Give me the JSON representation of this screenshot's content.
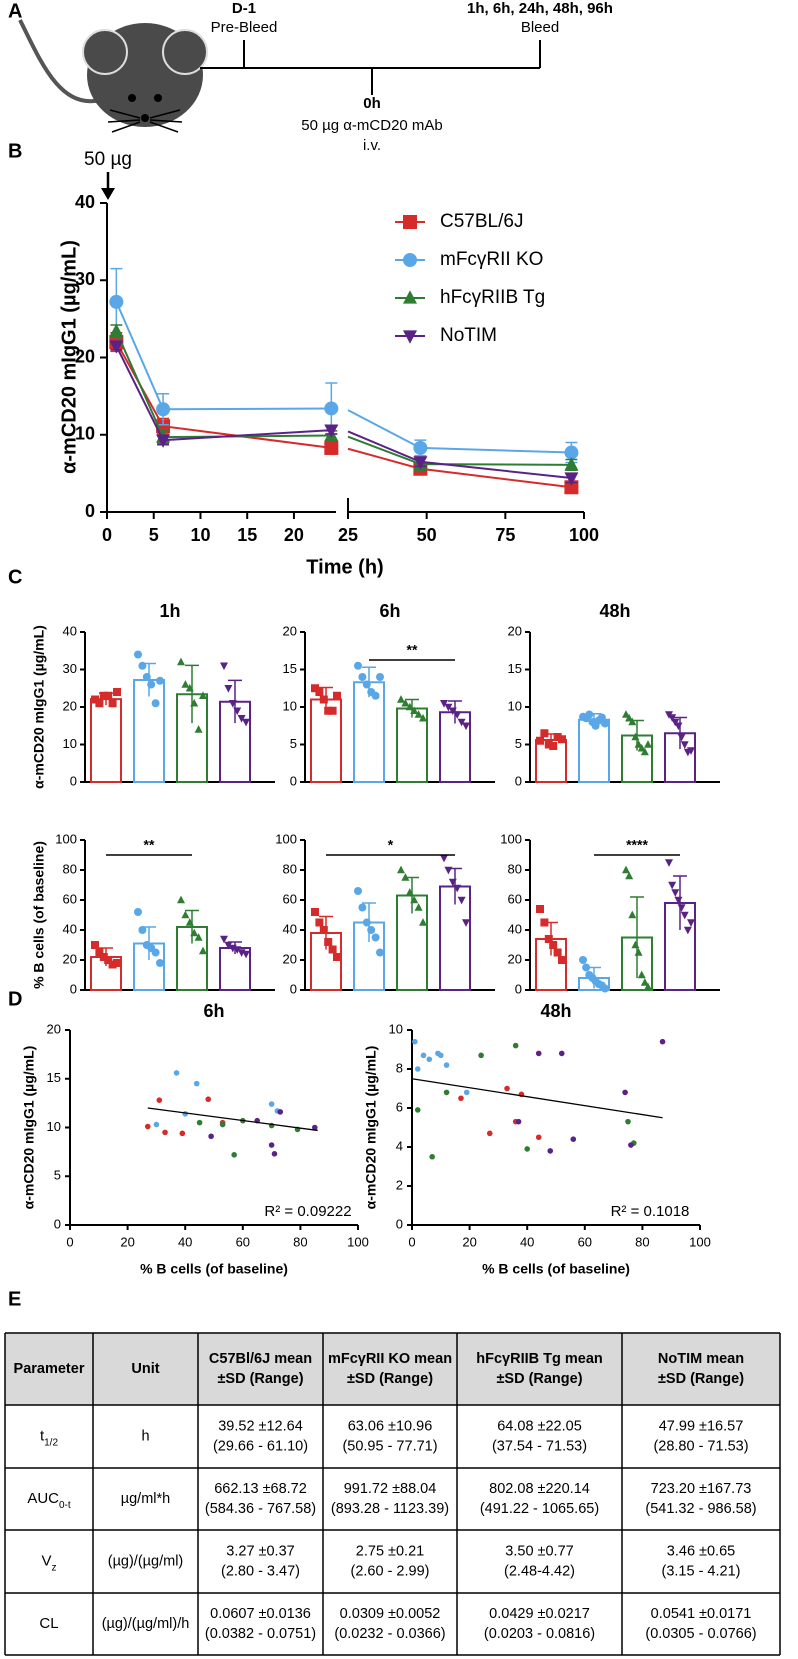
{
  "panel_labels": [
    "A",
    "B",
    "C",
    "D",
    "E"
  ],
  "panel_a": {
    "pre": [
      "D-1",
      "Pre-Bleed"
    ],
    "bleed": [
      "1h, 6h, 24h, 48h, 96h",
      "Bleed"
    ],
    "dose": [
      "0h",
      "50 µg α-mCD20 mAb",
      "i.v."
    ]
  },
  "chart_data": [
    {
      "type": "line",
      "annotation": "50 µg",
      "ylabel": "α-mCD20 mIgG1 (µg/mL)",
      "xlabel": "Time (h)",
      "x": [
        1,
        6,
        24,
        48,
        96
      ],
      "x_segments": [
        {
          "xlim": [
            0,
            24.5
          ],
          "xticks": [
            0,
            5,
            10,
            15,
            20
          ]
        },
        {
          "xlim": [
            25,
            100
          ],
          "xticks": [
            25,
            50,
            75,
            100
          ]
        }
      ],
      "ylim": [
        0,
        40
      ],
      "yticks": [
        0,
        10,
        20,
        30,
        40
      ],
      "series": [
        {
          "name": "C57BL/6J",
          "color": "#d62b2b",
          "marker": "square",
          "values": [
            22.0,
            11.1,
            8.3,
            5.6,
            3.2
          ],
          "errors": [
            1.2,
            1.0,
            0.8,
            0.5,
            0.4
          ]
        },
        {
          "name": "mFcγRII KO",
          "color": "#5aa7e8",
          "marker": "circle",
          "values": [
            27.2,
            13.3,
            13.4,
            8.3,
            7.7
          ],
          "errors": [
            4.3,
            2.0,
            3.3,
            1.0,
            1.3
          ]
        },
        {
          "name": "hFcγRIIB Tg",
          "color": "#2e7d32",
          "marker": "triangle-up",
          "values": [
            23.4,
            9.7,
            9.9,
            6.2,
            6.1
          ],
          "errors": [
            0.8,
            0.8,
            0.6,
            0.8,
            0.7
          ]
        },
        {
          "name": "NoTIM",
          "color": "#5b2286",
          "marker": "triangle-down",
          "values": [
            21.5,
            9.3,
            10.6,
            6.5,
            4.4
          ],
          "errors": [
            0.5,
            0.6,
            0.5,
            0.6,
            0.6
          ]
        }
      ]
    },
    {
      "type": "bar",
      "title": "1h",
      "ylabel": "α-mCD20 mIgG1 (µg/mL)",
      "ylim": [
        0,
        40
      ],
      "yticks": [
        0,
        10,
        20,
        30,
        40
      ],
      "colors": [
        "#d62b2b",
        "#5aa7e8",
        "#2e7d32",
        "#5b2286"
      ],
      "markers": [
        "square",
        "circle",
        "triangle-up",
        "triangle-down"
      ],
      "values": [
        22.1,
        27.2,
        23.4,
        21.4
      ],
      "errors": [
        1.6,
        4.4,
        7.7,
        5.7
      ],
      "points": [
        [
          22,
          21,
          23,
          23,
          21,
          24
        ],
        [
          34,
          31,
          28,
          26,
          21,
          27
        ],
        [
          32,
          26,
          25,
          21,
          14,
          23
        ],
        [
          31,
          25,
          21,
          19,
          17,
          16
        ]
      ]
    },
    {
      "type": "bar",
      "title": "6h",
      "ylim": [
        0,
        20
      ],
      "yticks": [
        0,
        5,
        10,
        15,
        20
      ],
      "significance": "**",
      "colors": [
        "#d62b2b",
        "#5aa7e8",
        "#2e7d32",
        "#5b2286"
      ],
      "markers": [
        "square",
        "circle",
        "triangle-up",
        "triangle-down"
      ],
      "values": [
        11.0,
        13.3,
        9.8,
        9.3
      ],
      "errors": [
        1.6,
        2.0,
        1.2,
        1.5
      ],
      "points": [
        [
          12.5,
          12,
          11,
          9.5,
          9.5,
          11.5
        ],
        [
          15.5,
          14,
          13,
          12,
          11.5,
          14
        ],
        [
          11,
          10.5,
          10,
          9.5,
          9,
          8.5
        ],
        [
          10.5,
          10,
          9.5,
          9,
          8,
          7.5
        ]
      ]
    },
    {
      "type": "bar",
      "title": "48h",
      "ylim": [
        0,
        20
      ],
      "yticks": [
        0,
        5,
        10,
        15,
        20
      ],
      "colors": [
        "#d62b2b",
        "#5aa7e8",
        "#2e7d32",
        "#5b2286"
      ],
      "markers": [
        "square",
        "circle",
        "triangle-up",
        "triangle-down"
      ],
      "values": [
        5.6,
        8.3,
        6.2,
        6.5
      ],
      "errors": [
        0.8,
        0.8,
        2.0,
        2.1
      ],
      "points": [
        [
          5.5,
          6.5,
          5,
          4.8,
          6,
          5.7
        ],
        [
          8.7,
          8.5,
          9,
          8,
          7.5,
          8.2,
          8.6,
          7.8
        ],
        [
          9,
          8.5,
          8,
          6,
          5,
          4.5,
          4,
          5
        ],
        [
          9,
          8.6,
          8,
          7.5,
          6,
          5,
          4,
          4.2
        ]
      ]
    },
    {
      "type": "bar",
      "ylabel": "% B cells (of baseline)",
      "ylim": [
        0,
        100
      ],
      "yticks": [
        0,
        20,
        40,
        60,
        80,
        100
      ],
      "significance": "**",
      "colors": [
        "#d62b2b",
        "#5aa7e8",
        "#2e7d32",
        "#5b2286"
      ],
      "markers": [
        "square",
        "circle",
        "triangle-up",
        "triangle-down"
      ],
      "values": [
        22,
        31,
        42,
        28
      ],
      "errors": [
        6,
        11,
        11,
        4
      ],
      "points": [
        [
          30,
          25,
          22,
          20,
          17,
          18
        ],
        [
          52,
          40,
          30,
          28,
          25,
          18
        ],
        [
          60,
          50,
          45,
          38,
          35,
          26
        ],
        [
          34,
          30,
          28,
          27,
          25,
          24
        ]
      ]
    },
    {
      "type": "bar",
      "ylim": [
        0,
        100
      ],
      "yticks": [
        0,
        20,
        40,
        60,
        80,
        100
      ],
      "significance": "*",
      "colors": [
        "#d62b2b",
        "#5aa7e8",
        "#2e7d32",
        "#5b2286"
      ],
      "markers": [
        "square",
        "circle",
        "triangle-up",
        "triangle-down"
      ],
      "values": [
        38,
        45,
        63,
        69
      ],
      "errors": [
        11,
        13,
        12,
        12
      ],
      "points": [
        [
          52,
          45,
          40,
          32,
          27,
          22
        ],
        [
          66,
          55,
          45,
          40,
          35,
          25
        ],
        [
          80,
          75,
          65,
          60,
          55,
          45
        ],
        [
          88,
          80,
          72,
          68,
          60,
          45
        ]
      ]
    },
    {
      "type": "bar",
      "ylim": [
        0,
        100
      ],
      "yticks": [
        0,
        20,
        40,
        60,
        80,
        100
      ],
      "significance": "****",
      "colors": [
        "#d62b2b",
        "#5aa7e8",
        "#2e7d32",
        "#5b2286"
      ],
      "markers": [
        "square",
        "circle",
        "triangle-up",
        "triangle-down"
      ],
      "values": [
        34,
        8,
        35,
        58
      ],
      "errors": [
        11,
        7,
        27,
        18
      ],
      "points": [
        [
          54,
          45,
          34,
          30,
          25,
          20
        ],
        [
          20,
          15,
          10,
          8,
          6,
          4,
          3,
          1
        ],
        [
          80,
          76,
          50,
          30,
          25,
          10,
          5,
          2
        ],
        [
          85,
          70,
          65,
          60,
          55,
          50,
          40,
          45
        ]
      ]
    },
    {
      "type": "scatter",
      "title": "6h",
      "xlabel": "% B cells (of baseline)",
      "ylabel": "α-mCD20 mIgG1 (µg/mL)",
      "xlim": [
        0,
        100
      ],
      "xticks": [
        0,
        20,
        40,
        60,
        80,
        100
      ],
      "ylim": [
        0,
        20
      ],
      "yticks": [
        0,
        5,
        10,
        15,
        20
      ],
      "series": [
        {
          "color": "#d62b2b",
          "x": [
            27,
            31,
            33,
            39,
            48,
            53
          ],
          "y": [
            10.1,
            12.8,
            9.5,
            9.4,
            12.9,
            10.5
          ]
        },
        {
          "color": "#5aa7e8",
          "x": [
            30,
            37,
            40,
            44,
            70,
            72
          ],
          "y": [
            10.3,
            15.6,
            11.4,
            14.5,
            12.4,
            11.7
          ]
        },
        {
          "color": "#2e7d32",
          "x": [
            45,
            53,
            57,
            60,
            70,
            79
          ],
          "y": [
            10.5,
            10.3,
            7.2,
            10.7,
            10.2,
            9.8
          ]
        },
        {
          "color": "#5b2286",
          "x": [
            49,
            65,
            70,
            71,
            73,
            85
          ],
          "y": [
            9.1,
            10.7,
            8.2,
            7.3,
            11.6,
            10.0
          ]
        }
      ],
      "fit": {
        "x": [
          27,
          86
        ],
        "y": [
          12.0,
          9.7
        ]
      },
      "annotation": "R² = 0.09222"
    },
    {
      "type": "scatter",
      "title": "48h",
      "xlabel": "% B cells (of baseline)",
      "ylabel": "α-mCD20 mIgG1 (µg/mL)",
      "xlim": [
        0,
        100
      ],
      "xticks": [
        0,
        20,
        40,
        60,
        80,
        100
      ],
      "ylim": [
        0,
        10
      ],
      "yticks": [
        0,
        2,
        4,
        6,
        8,
        10
      ],
      "series": [
        {
          "color": "#d62b2b",
          "x": [
            17,
            27,
            33,
            36,
            38,
            44
          ],
          "y": [
            6.5,
            4.7,
            7.0,
            5.3,
            6.7,
            4.5
          ]
        },
        {
          "color": "#5aa7e8",
          "x": [
            1,
            2,
            4,
            6,
            9,
            10,
            12,
            19
          ],
          "y": [
            9.4,
            8.0,
            8.7,
            8.5,
            8.8,
            8.7,
            8.2,
            6.8
          ]
        },
        {
          "color": "#2e7d32",
          "x": [
            2,
            7,
            12,
            24,
            36,
            40,
            75,
            77
          ],
          "y": [
            5.9,
            3.5,
            6.8,
            8.7,
            9.2,
            3.9,
            5.3,
            4.2
          ]
        },
        {
          "color": "#5b2286",
          "x": [
            37,
            44,
            48,
            52,
            56,
            74,
            76,
            87
          ],
          "y": [
            5.3,
            8.8,
            3.8,
            8.8,
            4.4,
            6.8,
            4.1,
            9.4
          ]
        }
      ],
      "fit": {
        "x": [
          0,
          87
        ],
        "y": [
          7.5,
          5.5
        ]
      },
      "annotation": "R² = 0.1018"
    }
  ],
  "table": {
    "header": [
      [
        "Parameter"
      ],
      [
        "Unit"
      ],
      [
        "C57Bl/6J mean",
        "±SD (Range)"
      ],
      [
        "mFcγRII KO mean",
        "±SD (Range)"
      ],
      [
        "hFcγRIIB Tg mean",
        "±SD (Range)"
      ],
      [
        "NoTIM mean",
        "±SD (Range)"
      ]
    ],
    "rows": [
      [
        {
          "text": "t",
          "sub": "1/2"
        },
        [
          "h"
        ],
        [
          "39.52 ±12.64",
          "(29.66 - 61.10)"
        ],
        [
          "63.06 ±10.96",
          "(50.95 - 77.71)"
        ],
        [
          "64.08 ±22.05",
          "(37.54 - 71.53)"
        ],
        [
          "47.99 ±16.57",
          "(28.80 - 71.53)"
        ]
      ],
      [
        {
          "text": "AUC",
          "sub": "0-t"
        },
        [
          "µg/ml*h"
        ],
        [
          "662.13 ±68.72",
          "(584.36 - 767.58)"
        ],
        [
          "991.72 ±88.04",
          "(893.28 - 1123.39)"
        ],
        [
          "802.08 ±220.14",
          "(491.22 - 1065.65)"
        ],
        [
          "723.20 ±167.73",
          "(541.32 - 986.58)"
        ]
      ],
      [
        {
          "text": "V",
          "sub": "z"
        },
        [
          "(µg)/(µg/ml)"
        ],
        [
          "3.27 ±0.37",
          "(2.80 - 3.47)"
        ],
        [
          "2.75 ±0.21",
          "(2.60 - 2.99)"
        ],
        [
          "3.50 ±0.77",
          "(2.48-4.42)"
        ],
        [
          "3.46 ±0.65",
          "(3.15 - 4.21)"
        ]
      ],
      [
        {
          "text": "CL"
        },
        [
          "(µg)/(µg/ml)/h"
        ],
        [
          "0.0607 ±0.0136",
          "(0.0382 - 0.0751)"
        ],
        [
          "0.0309 ±0.0052",
          "(0.0232 - 0.0366)"
        ],
        [
          "0.0429 ±0.0217",
          "(0.0203 - 0.0816)"
        ],
        [
          "0.0541 ±0.0171",
          "(0.0305 - 0.0766)"
        ]
      ]
    ]
  }
}
